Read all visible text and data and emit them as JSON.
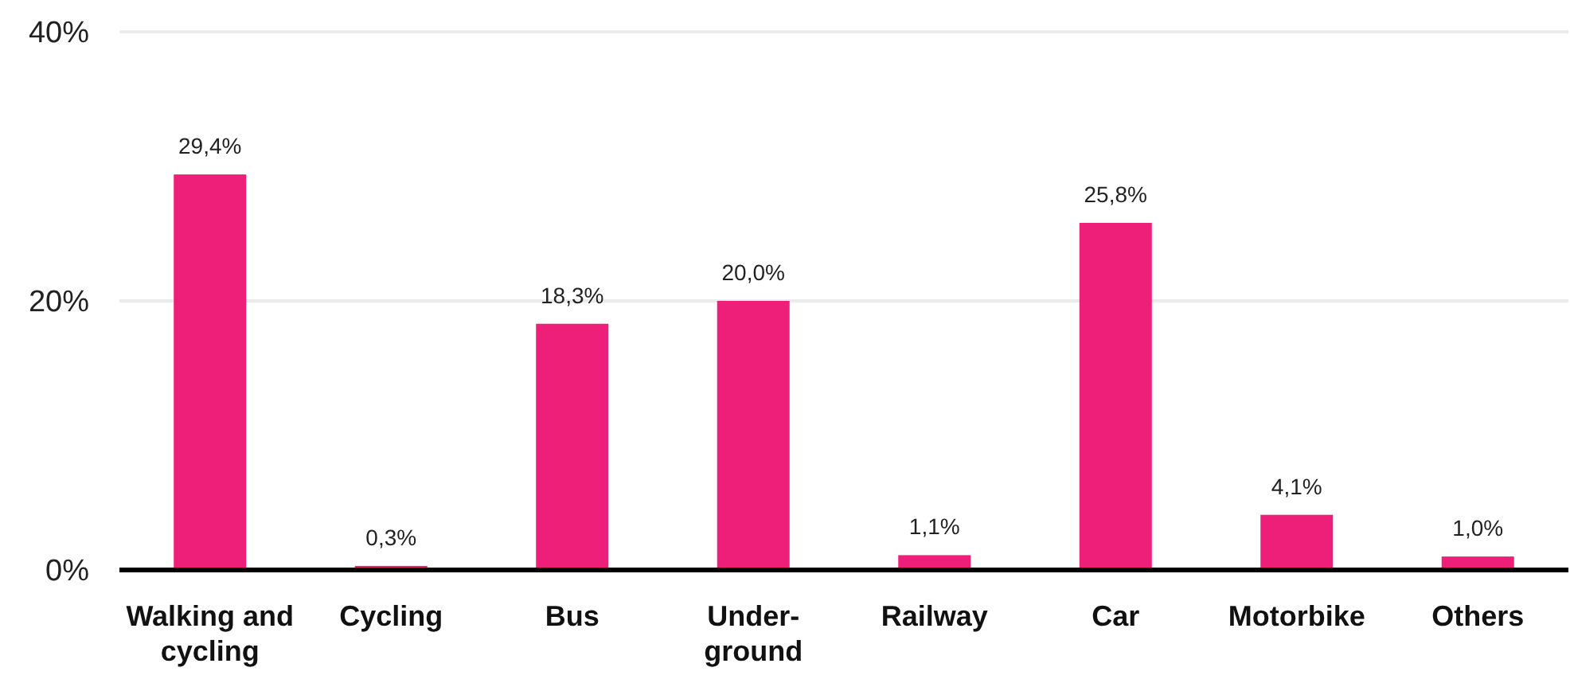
{
  "chart_data": {
    "type": "bar",
    "categories": [
      "Walking and cycling",
      "Cycling",
      "Bus",
      "Under-ground",
      "Railway",
      "Car",
      "Motorbike",
      "Others"
    ],
    "values": [
      29.4,
      0.3,
      18.3,
      20.0,
      1.1,
      25.8,
      4.1,
      1.0
    ],
    "value_labels": [
      "29,4%",
      "0,3%",
      "18,3%",
      "20,0%",
      "1,1%",
      "25,8%",
      "4,1%",
      "1,0%"
    ],
    "color": "#ee1f78",
    "ylim": [
      0,
      40
    ],
    "yticks": [
      {
        "value": 0,
        "label": "0%"
      },
      {
        "value": 20,
        "label": "20%"
      },
      {
        "value": 40,
        "label": "40%"
      }
    ],
    "grid": "y"
  }
}
